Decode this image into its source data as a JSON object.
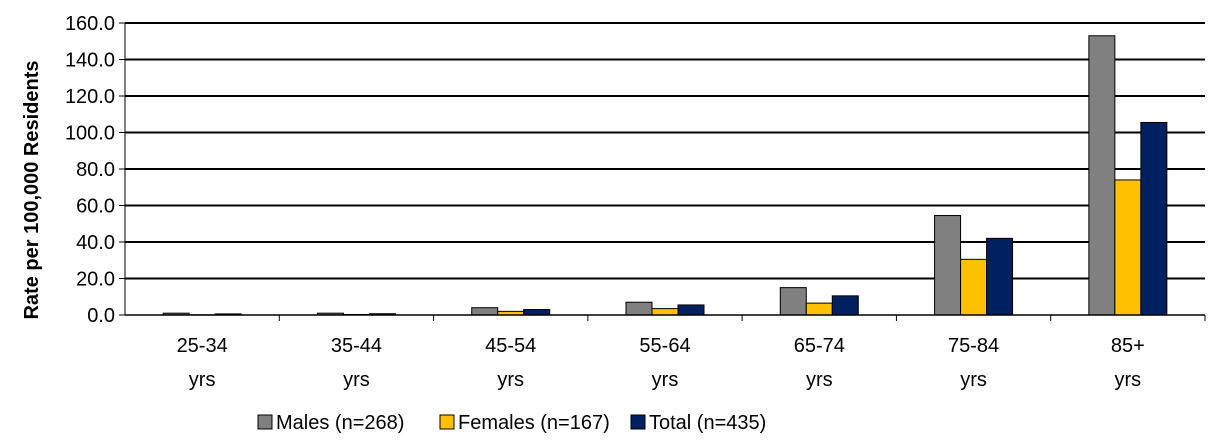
{
  "chart_data": {
    "type": "bar",
    "title": "",
    "xlabel": "",
    "ylabel": "Rate per 100,000 Residents",
    "ylim": [
      0,
      160
    ],
    "ytick_step": 20,
    "ytick_labels": [
      "0.0",
      "20.0",
      "40.0",
      "60.0",
      "80.0",
      "100.0",
      "120.0",
      "140.0",
      "160.0"
    ],
    "grid": "horizontal",
    "legend_position": "bottom",
    "categories": [
      [
        "25-34",
        "yrs"
      ],
      [
        "35-44",
        "yrs"
      ],
      [
        "45-54",
        "yrs"
      ],
      [
        "55-64",
        "yrs"
      ],
      [
        "65-74",
        "yrs"
      ],
      [
        "75-84",
        "yrs"
      ],
      [
        "85+",
        "yrs"
      ]
    ],
    "series": [
      {
        "name": "Males (n=268)",
        "color": "#808080",
        "values": [
          1.0,
          1.0,
          4.0,
          7.0,
          15.0,
          54.5,
          153.0
        ]
      },
      {
        "name": "Females (n=167)",
        "color": "#FFC000",
        "values": [
          0.1,
          0.3,
          2.0,
          3.5,
          6.5,
          30.5,
          74.0
        ]
      },
      {
        "name": "Total (n=435)",
        "color": "#002060",
        "values": [
          0.6,
          0.7,
          3.0,
          5.5,
          10.5,
          42.0,
          105.5
        ]
      }
    ]
  }
}
